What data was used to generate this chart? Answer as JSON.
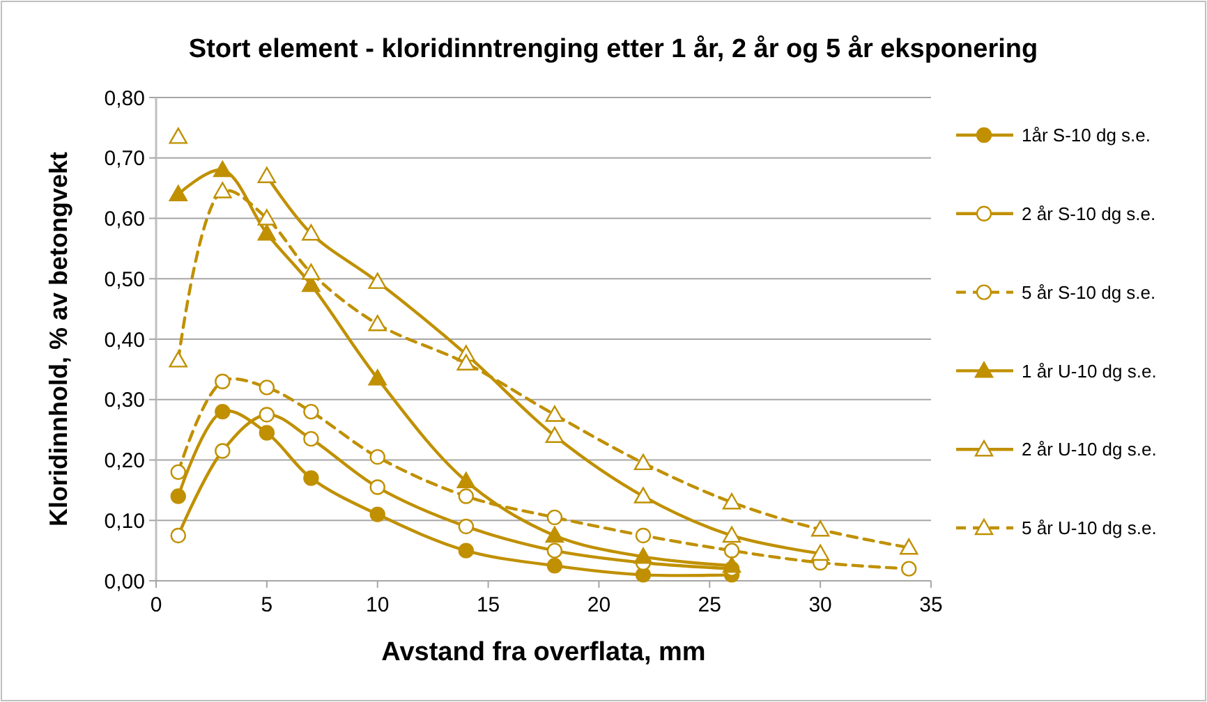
{
  "chart_data": {
    "type": "line",
    "title": "Stort element - kloridinntrenging etter 1 år, 2 år og 5 år eksponering",
    "xlabel": "Avstand fra overflata, mm",
    "ylabel": "Kloridinnhold, % av betongvekt",
    "xlim": [
      0,
      35
    ],
    "xticks": [
      0,
      5,
      10,
      15,
      20,
      25,
      30,
      35
    ],
    "ylim": [
      0,
      0.8
    ],
    "yticks": [
      {
        "value": 0,
        "label": "0,00"
      },
      {
        "value": 0.1,
        "label": "0,10"
      },
      {
        "value": 0.2,
        "label": "0,20"
      },
      {
        "value": 0.3,
        "label": "0,30"
      },
      {
        "value": 0.4,
        "label": "0,40"
      },
      {
        "value": 0.5,
        "label": "0,50"
      },
      {
        "value": 0.6,
        "label": "0,60"
      },
      {
        "value": 0.7,
        "label": "0,70"
      },
      {
        "value": 0.8,
        "label": "0,80"
      }
    ],
    "grid": "y",
    "legend": "right",
    "series": [
      {
        "name": "1år S-10 dg s.e.",
        "color": "#c09000",
        "marker": "circle",
        "line_style": "solid",
        "x": [
          1,
          3,
          5,
          7,
          10,
          14,
          18,
          22,
          26
        ],
        "values": [
          0.14,
          0.28,
          0.245,
          0.17,
          0.11,
          0.05,
          0.025,
          0.01,
          0.01
        ]
      },
      {
        "name": "2 år S-10 dg s.e.",
        "color": "#c09000",
        "marker": "circle",
        "line_style": "solid",
        "x": [
          1,
          3,
          5,
          7,
          10,
          14,
          18,
          22,
          26
        ],
        "values": [
          0.075,
          0.215,
          0.275,
          0.235,
          0.155,
          0.09,
          0.05,
          0.03,
          0.02
        ]
      },
      {
        "name": "5 år S-10 dg s.e.",
        "color": "#c09000",
        "marker": "circle",
        "line_style": "dashed",
        "x": [
          1,
          3,
          5,
          7,
          10,
          14,
          18,
          22,
          26,
          30,
          34
        ],
        "values": [
          0.18,
          0.33,
          0.32,
          0.28,
          0.205,
          0.14,
          0.105,
          0.075,
          0.05,
          0.03,
          0.02
        ]
      },
      {
        "name": "1 år U-10 dg s.e.",
        "color": "#c09000",
        "marker": "triangle",
        "line_style": "solid",
        "x": [
          1,
          3,
          5,
          7,
          10,
          14,
          18,
          22,
          26
        ],
        "values": [
          0.64,
          0.68,
          0.575,
          0.49,
          0.335,
          0.165,
          0.075,
          0.04,
          0.025
        ]
      },
      {
        "name": "2 år U-10 dg s.e.",
        "color": "#c09000",
        "marker": "triangle",
        "line_style": "solid",
        "x": [
          1,
          3,
          5,
          7,
          10,
          14,
          18,
          22,
          26,
          30
        ],
        "values": [
          0.735,
          null,
          0.67,
          0.575,
          0.495,
          0.375,
          0.24,
          0.14,
          0.075,
          0.045
        ]
      },
      {
        "name": "5 år U-10 dg s.e.",
        "color": "#c09000",
        "marker": "triangle",
        "line_style": "dashed",
        "x": [
          1,
          3,
          5,
          7,
          10,
          14,
          18,
          22,
          26,
          30,
          34
        ],
        "values": [
          0.365,
          0.645,
          0.6,
          0.51,
          0.425,
          0.36,
          0.275,
          0.195,
          0.13,
          0.085,
          0.055
        ]
      }
    ]
  }
}
